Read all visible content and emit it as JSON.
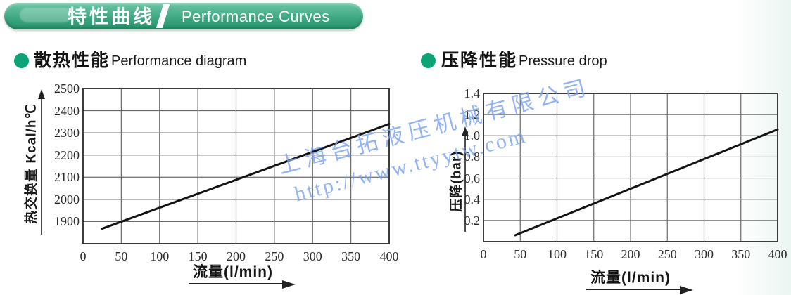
{
  "banner": {
    "title_zh": "特性曲线",
    "title_en": "Performance Curves"
  },
  "sections": {
    "left": {
      "title_zh": "散热性能",
      "title_en": "Performance diagram"
    },
    "right": {
      "title_zh": "压降性能",
      "title_en": "Pressure drop"
    }
  },
  "watermark": {
    "line1": "上海台拓液压机械有限公司",
    "line2": "http://www.ttyytw.com",
    "color": "#79a1f1"
  },
  "colors": {
    "banner_green_top": "#6cc6a5",
    "banner_green_bottom": "#28926c",
    "section_dot": "#0ca377",
    "grid": "#6b6b6b",
    "plot_border": "#3c3c3c",
    "data_line": "#141414",
    "tick_text": "#2e2e2e"
  },
  "chart_data": [
    {
      "type": "line",
      "title": "散热性能 Performance diagram",
      "xlabel": "流量(l/min)",
      "ylabel": "热交换量 Kcal/h℃",
      "xlim": [
        0,
        400
      ],
      "ylim": [
        1800,
        2500
      ],
      "grid": true,
      "legend": "none",
      "x_ticks": [
        0,
        50,
        100,
        150,
        200,
        250,
        300,
        350,
        400
      ],
      "x_tick_labels": [
        "0",
        "50",
        "100",
        "150",
        "200",
        "250",
        "300",
        "350",
        "400"
      ],
      "y_ticks": [
        1900,
        2000,
        2100,
        2200,
        2300,
        2400,
        2500
      ],
      "y_tick_labels": [
        "1900",
        "2000",
        "2100",
        "2200",
        "2300",
        "2400",
        "2500"
      ],
      "series": [
        {
          "name": "heat-exchange-capacity",
          "x": [
            25,
            400
          ],
          "y": [
            1868,
            2340
          ]
        }
      ]
    },
    {
      "type": "line",
      "title": "压降性能 Pressure drop",
      "xlabel": "流量(l/min)",
      "ylabel": "压降(bar)",
      "xlim": [
        0,
        400
      ],
      "ylim": [
        0,
        1.4
      ],
      "grid": true,
      "legend": "none",
      "x_ticks": [
        0,
        50,
        100,
        150,
        200,
        250,
        300,
        350,
        400
      ],
      "x_tick_labels": [
        "0",
        "50",
        "100",
        "150",
        "200",
        "250",
        "300",
        "350",
        "400"
      ],
      "y_ticks": [
        0.2,
        0.4,
        0.6,
        0.8,
        1.0,
        1.2,
        1.4
      ],
      "y_tick_labels": [
        "0.2",
        "0.4",
        "0.6",
        "0.8",
        "1.0",
        "1.2",
        "1.4"
      ],
      "series": [
        {
          "name": "pressure-drop",
          "x": [
            43,
            400
          ],
          "y": [
            0.06,
            1.06
          ]
        }
      ]
    }
  ]
}
